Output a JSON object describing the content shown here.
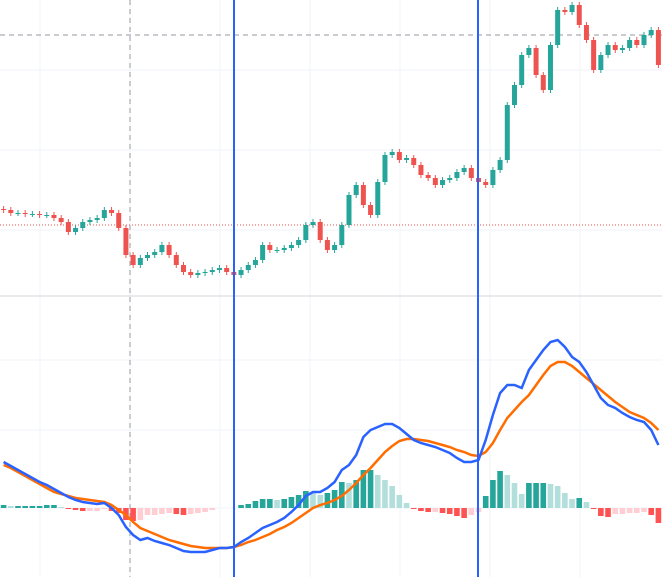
{
  "chart_data": [
    {
      "type": "candlestick",
      "ylim": [
        0,
        300
      ],
      "up_color": "#26a69a",
      "down_color": "#ef5350",
      "open": [
        91,
        90,
        87,
        87,
        86,
        86,
        85,
        85,
        82,
        78,
        68,
        72,
        78,
        80,
        82,
        90,
        87,
        72,
        45,
        35,
        42,
        45,
        48,
        55,
        45,
        35,
        28,
        25,
        27,
        28,
        30,
        32,
        28,
        25,
        30,
        35,
        40,
        55,
        50,
        50,
        52,
        55,
        60,
        75,
        78,
        60,
        50,
        55,
        75,
        105,
        115,
        95,
        85,
        118,
        145,
        148,
        140,
        142,
        135,
        125,
        122,
        115,
        120,
        122,
        128,
        132,
        122,
        118,
        115,
        130,
        140,
        195,
        215,
        245,
        252,
        225,
        210,
        255,
        290,
        288,
        295,
        275,
        260,
        230,
        245,
        255,
        250,
        252,
        260,
        255,
        265,
        270
      ],
      "high": [
        94,
        93,
        90,
        90,
        89,
        89,
        88,
        88,
        85,
        81,
        75,
        81,
        83,
        85,
        93,
        93,
        90,
        75,
        48,
        45,
        48,
        51,
        58,
        58,
        48,
        38,
        31,
        30,
        31,
        33,
        35,
        35,
        31,
        33,
        38,
        43,
        58,
        58,
        53,
        55,
        58,
        63,
        78,
        81,
        81,
        63,
        58,
        78,
        108,
        118,
        118,
        98,
        121,
        148,
        151,
        151,
        145,
        145,
        138,
        128,
        125,
        123,
        125,
        131,
        135,
        135,
        125,
        121,
        133,
        143,
        198,
        218,
        248,
        255,
        255,
        228,
        258,
        293,
        293,
        298,
        298,
        278,
        263,
        248,
        258,
        258,
        255,
        263,
        263,
        268,
        273,
        273
      ],
      "low": [
        87,
        84,
        84,
        83,
        83,
        82,
        82,
        79,
        75,
        65,
        65,
        69,
        75,
        77,
        79,
        84,
        69,
        42,
        32,
        32,
        39,
        42,
        45,
        42,
        32,
        25,
        22,
        22,
        24,
        25,
        27,
        25,
        22,
        22,
        27,
        32,
        37,
        47,
        47,
        47,
        49,
        52,
        57,
        72,
        57,
        47,
        47,
        52,
        72,
        102,
        92,
        82,
        82,
        115,
        142,
        137,
        137,
        132,
        122,
        119,
        112,
        112,
        117,
        119,
        125,
        119,
        115,
        112,
        112,
        127,
        137,
        192,
        212,
        242,
        222,
        207,
        207,
        252,
        285,
        285,
        272,
        257,
        227,
        227,
        242,
        247,
        247,
        249,
        252,
        252,
        262,
        232
      ],
      "close": [
        90,
        87,
        87,
        86,
        86,
        85,
        85,
        82,
        78,
        68,
        72,
        78,
        80,
        82,
        90,
        87,
        72,
        45,
        35,
        42,
        45,
        48,
        55,
        45,
        35,
        28,
        25,
        27,
        28,
        30,
        32,
        28,
        25,
        30,
        35,
        40,
        55,
        50,
        50,
        52,
        55,
        60,
        75,
        78,
        60,
        50,
        55,
        75,
        105,
        115,
        95,
        85,
        118,
        145,
        148,
        140,
        142,
        135,
        125,
        122,
        115,
        120,
        122,
        128,
        132,
        122,
        118,
        115,
        130,
        140,
        195,
        215,
        245,
        252,
        225,
        210,
        255,
        290,
        288,
        295,
        275,
        260,
        230,
        245,
        255,
        250,
        252,
        260,
        255,
        265,
        270,
        235
      ]
    },
    {
      "type": "macd",
      "ylim": [
        -69,
        211
      ],
      "macd": {
        "color": "#2962ff",
        "values": [
          46,
          42,
          38,
          34,
          30,
          26,
          23,
          19,
          15,
          11,
          8,
          6,
          5,
          4,
          5,
          0,
          -7,
          -19,
          -27,
          -32,
          -30,
          -33,
          -35,
          -37,
          -40,
          -43,
          -44,
          -44,
          -44,
          -42,
          -40,
          -40,
          -39,
          -34,
          -30,
          -25,
          -20,
          -17,
          -14,
          -10,
          -4,
          3,
          12,
          16,
          16,
          20,
          26,
          38,
          43,
          53,
          71,
          78,
          81,
          84,
          84,
          80,
          74,
          68,
          65,
          63,
          61,
          58,
          55,
          50,
          46,
          46,
          48,
          68,
          93,
          115,
          123,
          123,
          120,
          138,
          148,
          158,
          166,
          168,
          161,
          151,
          146,
          136,
          123,
          110,
          103,
          100,
          95,
          91,
          88,
          86,
          78,
          63
        ]
      },
      "signal": {
        "color": "#ff6d00",
        "values": [
          43,
          40,
          36,
          32,
          28,
          24,
          20,
          16,
          14,
          12,
          10,
          9,
          8,
          7,
          6,
          3,
          -2,
          -7,
          -14,
          -20,
          -23,
          -26,
          -29,
          -32,
          -34,
          -36,
          -38,
          -39,
          -40,
          -40,
          -40,
          -40,
          -39,
          -37,
          -34,
          -32,
          -29,
          -26,
          -22,
          -19,
          -15,
          -10,
          -5,
          0,
          3,
          5,
          8,
          12,
          18,
          25,
          33,
          40,
          48,
          56,
          62,
          67,
          69,
          69,
          68,
          67,
          65,
          63,
          61,
          58,
          56,
          53,
          52,
          56,
          65,
          78,
          90,
          98,
          106,
          113,
          123,
          133,
          142,
          146,
          146,
          142,
          136,
          130,
          124,
          118,
          112,
          106,
          101,
          96,
          93,
          90,
          85,
          78
        ]
      },
      "histogram": {
        "colors": [
          "#26a69a",
          "#b2dfdb",
          "#ffcdd2",
          "#ff5252"
        ],
        "values": [
          3,
          2,
          2,
          2,
          2,
          2,
          3,
          3,
          1,
          -1,
          -2,
          -3,
          -3,
          -3,
          -1,
          -3,
          -5,
          -12,
          -13,
          -12,
          -7,
          -7,
          -6,
          -5,
          -6,
          -7,
          -6,
          -5,
          -4,
          -2,
          0,
          0,
          0,
          3,
          4,
          7,
          9,
          9,
          8,
          9,
          11,
          13,
          17,
          16,
          13,
          15,
          18,
          26,
          25,
          28,
          38,
          38,
          33,
          28,
          22,
          13,
          5,
          -1,
          -3,
          -4,
          -4,
          -5,
          -6,
          -8,
          -10,
          -7,
          -4,
          12,
          28,
          37,
          33,
          25,
          14,
          25,
          25,
          25,
          24,
          22,
          15,
          9,
          10,
          6,
          -1,
          -8,
          -9,
          -6,
          -6,
          -5,
          -5,
          -4,
          -7,
          -15
        ]
      }
    }
  ]
}
